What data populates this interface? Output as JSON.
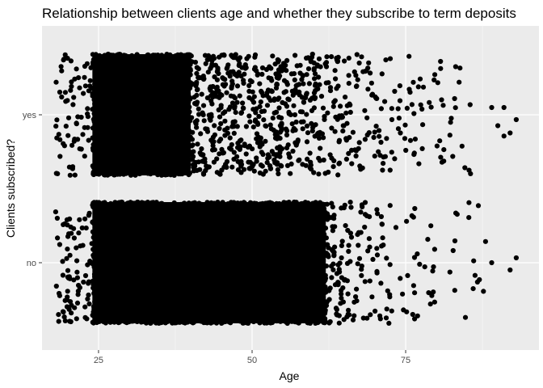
{
  "chart_data": {
    "type": "scatter",
    "title": "Relationship between clients age and whether they subscribe to term deposits",
    "xlabel": "Age",
    "ylabel": "Clients subscribed?",
    "x_ticks": [
      25,
      50,
      75
    ],
    "x_range": [
      15.8,
      96.7
    ],
    "categories": [
      "no",
      "yes"
    ],
    "jitter": "points jittered vertically within each category band",
    "grid": true,
    "panel_background": "#ebebeb",
    "point_color": "#000000",
    "series": [
      {
        "category": "no",
        "density": [
          {
            "age_range": [
              18,
              24
            ],
            "level": 0.3
          },
          {
            "age_range": [
              24,
              62
            ],
            "level": 1.0
          },
          {
            "age_range": [
              62,
              66
            ],
            "level": 0.45
          },
          {
            "age_range": [
              66,
              72
            ],
            "level": 0.2
          },
          {
            "age_range": [
              72,
              80
            ],
            "level": 0.1
          },
          {
            "age_range": [
              80,
              88
            ],
            "level": 0.04
          }
        ],
        "outliers": [
          [
            89,
            0.0
          ],
          [
            88,
            -0.35
          ],
          [
            92,
            0.12
          ],
          [
            93,
            -0.08
          ],
          [
            87,
            0.28
          ]
        ]
      },
      {
        "category": "yes",
        "density": [
          {
            "age_range": [
              18,
              24
            ],
            "level": 0.25
          },
          {
            "age_range": [
              24,
              40
            ],
            "level": 0.95
          },
          {
            "age_range": [
              40,
              55
            ],
            "level": 0.6
          },
          {
            "age_range": [
              55,
              62
            ],
            "level": 0.45
          },
          {
            "age_range": [
              62,
              72
            ],
            "level": 0.25
          },
          {
            "age_range": [
              72,
              86
            ],
            "level": 0.1
          }
        ],
        "outliers": [
          [
            89,
            -0.12
          ],
          [
            91,
            -0.12
          ],
          [
            90,
            0.18
          ],
          [
            91,
            0.35
          ],
          [
            92,
            0.3
          ],
          [
            93,
            0.08
          ]
        ]
      }
    ]
  }
}
